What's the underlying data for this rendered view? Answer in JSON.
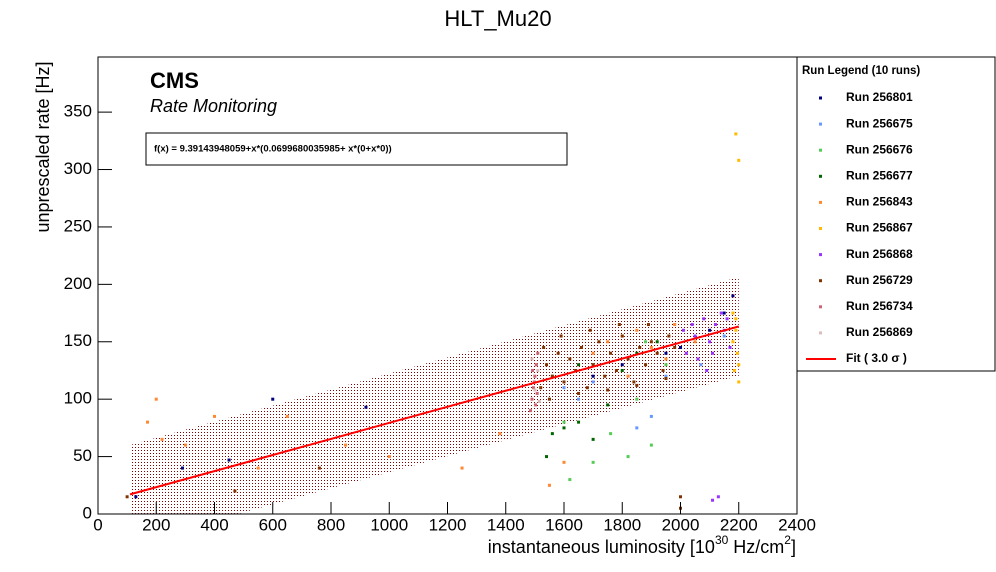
{
  "chart_data": {
    "type": "scatter",
    "title": "HLT_Mu20",
    "y_label": "unprescaled rate [Hz]",
    "x_label": {
      "text": "instantaneous luminosity [10",
      "sup1": "30",
      "mid": " Hz/cm",
      "sup2": "2",
      "end": "]"
    },
    "cms_label": "CMS",
    "subtitle": "Rate Monitoring",
    "formula": "f(x) = 9.39143948059+x*(0.0699680035985+ x*(0+x*0))",
    "legend_title": "Run Legend (10 runs)",
    "xlim": [
      0,
      2400
    ],
    "ylim": [
      0,
      398
    ],
    "xticks": [
      0,
      200,
      400,
      600,
      800,
      1000,
      1200,
      1400,
      1600,
      1800,
      2000,
      2200,
      2400
    ],
    "yticks": [
      0,
      50,
      100,
      150,
      200,
      250,
      300,
      350
    ],
    "series": [
      {
        "name": "Run 256801",
        "color": "#000080",
        "x": [
          600,
          920,
          450,
          290,
          130,
          2180,
          2150,
          1950,
          1800,
          2100,
          1700,
          2000
        ],
        "y": [
          100,
          93,
          47,
          40,
          15,
          190,
          175,
          140,
          130,
          160,
          120,
          145
        ]
      },
      {
        "name": "Run 256675",
        "color": "#6699ff",
        "x": [
          1650,
          1900,
          1850,
          2070,
          1700,
          1950,
          2150,
          1600
        ],
        "y": [
          100,
          85,
          75,
          130,
          115,
          120,
          155,
          110
        ]
      },
      {
        "name": "Run 256676",
        "color": "#55cc55",
        "x": [
          1620,
          1700,
          1820,
          1900,
          1760,
          1600,
          1850,
          1950,
          1700,
          1560,
          1880
        ],
        "y": [
          30,
          45,
          50,
          60,
          70,
          80,
          100,
          130,
          130,
          120,
          150
        ]
      },
      {
        "name": "Run 256677",
        "color": "#006600",
        "x": [
          1540,
          1560,
          1650,
          1700,
          1600,
          1750,
          1850,
          1920,
          1650,
          1800
        ],
        "y": [
          50,
          70,
          80,
          65,
          75,
          95,
          140,
          150,
          130,
          125
        ]
      },
      {
        "name": "Run 256843",
        "color": "#ff8833",
        "x": [
          200,
          170,
          220,
          300,
          400,
          550,
          650,
          850,
          1000,
          1250,
          1380,
          1550,
          1600,
          1800,
          1850,
          1900,
          1950,
          1750,
          1820,
          1980,
          2050,
          1700
        ],
        "y": [
          100,
          80,
          65,
          60,
          85,
          40,
          85,
          60,
          50,
          40,
          70,
          25,
          45,
          155,
          160,
          145,
          135,
          150,
          120,
          165,
          150,
          140
        ]
      },
      {
        "name": "Run 256867",
        "color": "#ffbb00",
        "x": [
          2190,
          2200,
          2180,
          2190,
          2195,
          2185,
          2200,
          2180,
          2190,
          2200
        ],
        "y": [
          331,
          308,
          175,
          160,
          140,
          125,
          115,
          150,
          170,
          130
        ]
      },
      {
        "name": "Run 256868",
        "color": "#9933ff",
        "x": [
          2020,
          2050,
          2080,
          2100,
          2120,
          2150,
          2170,
          2060,
          2140,
          2110,
          2010,
          2090,
          2160,
          2040,
          2130,
          2110
        ],
        "y": [
          140,
          155,
          170,
          150,
          165,
          160,
          145,
          135,
          175,
          140,
          160,
          125,
          170,
          165,
          15,
          12
        ]
      },
      {
        "name": "Run 256729",
        "color": "#803300",
        "x": [
          1520,
          1540,
          1560,
          1580,
          1600,
          1620,
          1640,
          1660,
          1680,
          1700,
          1720,
          1740,
          1760,
          1780,
          1800,
          1820,
          1840,
          1860,
          1880,
          1900,
          1920,
          1940,
          1960,
          1980,
          1550,
          1650,
          1750,
          1850,
          1950,
          1590,
          1690,
          1790,
          1890,
          1530,
          2000,
          2000,
          100,
          470,
          760
        ],
        "y": [
          110,
          130,
          120,
          140,
          115,
          135,
          125,
          145,
          110,
          130,
          150,
          120,
          140,
          125,
          155,
          135,
          115,
          145,
          130,
          150,
          140,
          125,
          155,
          145,
          100,
          105,
          108,
          112,
          118,
          155,
          160,
          165,
          165,
          145,
          15,
          5,
          15,
          20,
          40
        ]
      },
      {
        "name": "Run 256734",
        "color": "#cc6677",
        "x": [
          1490,
          1495,
          1500,
          1505,
          1485,
          1510,
          1498,
          1502,
          1492,
          1508
        ],
        "y": [
          100,
          110,
          120,
          130,
          90,
          140,
          115,
          95,
          125,
          105
        ]
      },
      {
        "name": "Run 256869",
        "color": "#ddbbbb",
        "x": [
          1500,
          1510,
          1490,
          1515
        ],
        "y": [
          108,
          125,
          135,
          98
        ]
      }
    ],
    "fit": {
      "name": "Fit ( 3.0 σ )",
      "color": "#ff0000",
      "x": [
        110,
        2200
      ],
      "y": [
        17.09,
        163.33
      ],
      "band_upper": [
        60.1,
        206.3
      ],
      "band_lower": [
        -25.9,
        120.3
      ]
    }
  }
}
